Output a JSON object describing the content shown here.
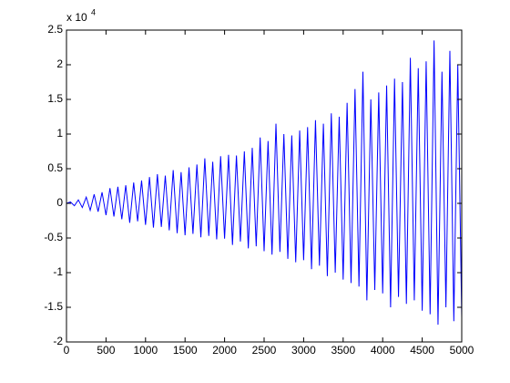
{
  "chart_data": {
    "type": "line",
    "y_multiplier": "x 10",
    "y_multiplier_exponent": "4",
    "x": [
      0,
      50,
      100,
      150,
      200,
      250,
      300,
      350,
      400,
      450,
      500,
      550,
      600,
      650,
      700,
      750,
      800,
      850,
      900,
      950,
      1000,
      1050,
      1100,
      1150,
      1200,
      1250,
      1300,
      1350,
      1400,
      1450,
      1500,
      1550,
      1600,
      1650,
      1700,
      1750,
      1800,
      1850,
      1900,
      1950,
      2000,
      2050,
      2100,
      2150,
      2200,
      2250,
      2300,
      2350,
      2400,
      2450,
      2500,
      2550,
      2600,
      2650,
      2700,
      2750,
      2800,
      2850,
      2900,
      2950,
      3000,
      3050,
      3100,
      3150,
      3200,
      3250,
      3300,
      3350,
      3400,
      3450,
      3500,
      3550,
      3600,
      3650,
      3700,
      3750,
      3800,
      3850,
      3900,
      3950,
      4000,
      4050,
      4100,
      4150,
      4200,
      4250,
      4300,
      4350,
      4400,
      4450,
      4500,
      4550,
      4600,
      4650,
      4700,
      4750,
      4800,
      4850,
      4900,
      4950,
      5000
    ],
    "series": [
      {
        "color": "#0000ff",
        "values": [
          0,
          200,
          -350,
          500,
          -600,
          900,
          -1000,
          1300,
          -1200,
          1600,
          -1700,
          2200,
          -1900,
          2400,
          -2300,
          2600,
          -2800,
          3000,
          -2600,
          3300,
          -3100,
          3800,
          -3500,
          4200,
          -3400,
          4000,
          -3900,
          4800,
          -4300,
          4500,
          -4600,
          5200,
          -4400,
          5600,
          -4900,
          6500,
          -4700,
          6000,
          -5200,
          6800,
          -5100,
          7000,
          -6000,
          6900,
          -5500,
          7500,
          -6500,
          8000,
          -6200,
          9500,
          -6900,
          9000,
          -7400,
          11500,
          -7000,
          10000,
          -8000,
          9800,
          -8500,
          10500,
          -8200,
          11000,
          -9500,
          12000,
          -9000,
          11500,
          -10500,
          13000,
          -10000,
          12500,
          -11000,
          14500,
          -11500,
          16500,
          -12000,
          19000,
          -14000,
          15000,
          -12500,
          16000,
          -13000,
          17000,
          -15000,
          18000,
          -13500,
          17500,
          -14500,
          21000,
          -14000,
          19500,
          -15500,
          20500,
          -16000,
          23500,
          -17500,
          19000,
          -15000,
          22000,
          -17000,
          20000,
          -16500
        ]
      }
    ],
    "xlim": [
      0,
      5000
    ],
    "xticks": [
      0,
      500,
      1000,
      1500,
      2000,
      2500,
      3000,
      3500,
      4000,
      4500,
      5000
    ],
    "ylim": [
      -20000,
      25000
    ],
    "yticks": [
      {
        "value": -20000,
        "label": "-2"
      },
      {
        "value": -15000,
        "label": "-1.5"
      },
      {
        "value": -10000,
        "label": "-1"
      },
      {
        "value": -5000,
        "label": "-0.5"
      },
      {
        "value": 0,
        "label": "0"
      },
      {
        "value": 5000,
        "label": "0.5"
      },
      {
        "value": 10000,
        "label": "1"
      },
      {
        "value": 15000,
        "label": "1.5"
      },
      {
        "value": 20000,
        "label": "2"
      },
      {
        "value": 25000,
        "label": "2.5"
      }
    ],
    "grid": false
  }
}
